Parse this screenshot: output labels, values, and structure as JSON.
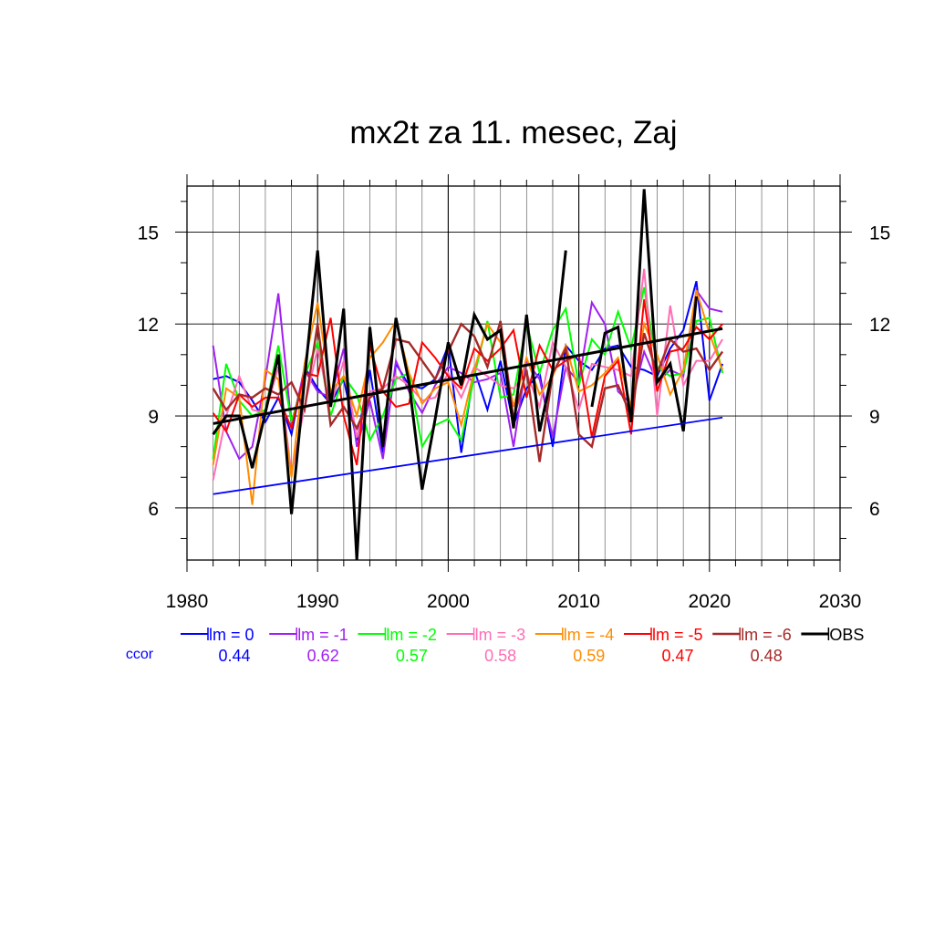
{
  "chart_data": {
    "type": "line",
    "title": "mx2t za 11. mesec, Zaj",
    "xlabel": "",
    "ylabel": "",
    "xlim": [
      1980,
      2030
    ],
    "ylim": [
      4.3,
      16.5
    ],
    "x_ticks": [
      1980,
      1990,
      2000,
      2010,
      2020,
      2030
    ],
    "y_ticks": [
      6,
      9,
      12,
      15
    ],
    "grid": true,
    "legend_position": "bottom",
    "ccor_label": "ccor",
    "ccor_color": "#0000ff",
    "series": [
      {
        "name": "lm = 0",
        "color": "#0000ff",
        "width": 2,
        "ccor": "0.44",
        "x": [
          1982,
          1983,
          1984,
          1985,
          1986,
          1987,
          1988,
          1989,
          1990,
          1991,
          1992,
          1993,
          1994,
          1995,
          1996,
          1997,
          1998,
          1999,
          2000,
          2001,
          2002,
          2003,
          2004,
          2005,
          2006,
          2007,
          2008,
          2009,
          2010,
          2011,
          2012,
          2013,
          2014,
          2015,
          2016,
          2017,
          2018,
          2019,
          2020,
          2021
        ],
        "y": [
          10.2,
          10.3,
          10.1,
          9.5,
          8.8,
          9.6,
          8.4,
          10.6,
          9.9,
          9.4,
          10.2,
          8.2,
          10.5,
          7.8,
          10.7,
          10.0,
          9.9,
          10.2,
          11.3,
          7.8,
          10.5,
          9.2,
          10.8,
          8.7,
          9.9,
          10.4,
          8.0,
          11.3,
          10.8,
          10.5,
          11.2,
          11.3,
          10.6,
          10.5,
          10.3,
          11.2,
          11.8,
          13.4,
          9.5,
          10.7
        ]
      },
      {
        "name": "lm = -1",
        "color": "#a020f0",
        "width": 2,
        "ccor": "0.62",
        "x": [
          1982,
          1983,
          1984,
          1985,
          1986,
          1987,
          1988,
          1989,
          1990,
          1991,
          1992,
          1993,
          1994,
          1995,
          1996,
          1997,
          1998,
          1999,
          2000,
          2001,
          2002,
          2003,
          2004,
          2005,
          2006,
          2007,
          2008,
          2009,
          2010,
          2011,
          2012,
          2013,
          2014,
          2015,
          2016,
          2017,
          2018,
          2019,
          2020,
          2021
        ],
        "y": [
          11.3,
          8.5,
          7.6,
          8.0,
          10.2,
          13.0,
          8.7,
          10.5,
          9.8,
          9.6,
          11.2,
          8.0,
          9.5,
          7.6,
          10.8,
          9.8,
          9.1,
          10.0,
          10.6,
          10.4,
          10.1,
          10.2,
          10.4,
          8.0,
          10.8,
          10.2,
          8.3,
          10.6,
          10.1,
          12.7,
          12.0,
          9.8,
          9.4,
          11.1,
          10.1,
          10.5,
          10.3,
          13.1,
          12.5,
          12.4
        ]
      },
      {
        "name": "lm = -2",
        "color": "#00ff00",
        "width": 2,
        "ccor": "0.57",
        "x": [
          1982,
          1983,
          1984,
          1985,
          1986,
          1987,
          1988,
          1989,
          1990,
          1991,
          1992,
          1993,
          1994,
          1995,
          1996,
          1997,
          1998,
          1999,
          2000,
          2001,
          2002,
          2003,
          2004,
          2005,
          2006,
          2007,
          2008,
          2009,
          2010,
          2011,
          2012,
          2013,
          2014,
          2015,
          2016,
          2017,
          2018,
          2019,
          2020,
          2021
        ],
        "y": [
          7.6,
          10.7,
          9.5,
          9.0,
          9.2,
          11.3,
          8.8,
          10.3,
          11.4,
          9.0,
          10.3,
          9.7,
          8.2,
          9.0,
          10.2,
          10.4,
          8.0,
          8.7,
          8.9,
          8.2,
          10.3,
          12.1,
          9.6,
          9.7,
          12.0,
          10.4,
          11.8,
          12.5,
          10.0,
          11.5,
          11.0,
          12.4,
          11.2,
          13.2,
          10.6,
          10.3,
          10.4,
          12.1,
          12.2,
          10.4
        ]
      },
      {
        "name": "lm = -3",
        "color": "#ff6eb4",
        "width": 2,
        "ccor": "0.58",
        "x": [
          1982,
          1983,
          1984,
          1985,
          1986,
          1987,
          1988,
          1989,
          1990,
          1991,
          1992,
          1993,
          1994,
          1995,
          1996,
          1997,
          1998,
          1999,
          2000,
          2001,
          2002,
          2003,
          2004,
          2005,
          2006,
          2007,
          2008,
          2009,
          2010,
          2011,
          2012,
          2013,
          2014,
          2015,
          2016,
          2017,
          2018,
          2019,
          2020,
          2021
        ],
        "y": [
          6.9,
          9.0,
          10.3,
          9.2,
          9.1,
          10.6,
          7.1,
          9.3,
          11.2,
          9.3,
          10.8,
          8.3,
          9.8,
          9.9,
          10.3,
          10.0,
          9.5,
          9.6,
          10.4,
          9.6,
          10.6,
          10.3,
          10.0,
          9.9,
          10.4,
          9.3,
          11.4,
          10.6,
          9.2,
          10.7,
          10.6,
          10.5,
          10.3,
          13.8,
          9.0,
          12.6,
          10.0,
          10.8,
          10.8,
          11.5
        ]
      },
      {
        "name": "lm = -4",
        "color": "#ff8c00",
        "width": 2,
        "ccor": "0.59",
        "x": [
          1982,
          1983,
          1984,
          1985,
          1986,
          1987,
          1988,
          1989,
          1990,
          1991,
          1992,
          1993,
          1994,
          1995,
          1996,
          1997,
          1998,
          1999,
          2000,
          2001,
          2002,
          2003,
          2004,
          2005,
          2006,
          2007,
          2008,
          2009,
          2010,
          2011,
          2012,
          2013,
          2014,
          2015,
          2016,
          2017,
          2018,
          2019,
          2020,
          2021
        ],
        "y": [
          7.4,
          9.9,
          9.6,
          6.1,
          10.5,
          10.2,
          7.0,
          10.7,
          12.7,
          9.8,
          10.3,
          9.0,
          10.9,
          11.4,
          12.1,
          10.4,
          9.4,
          9.9,
          10.1,
          8.7,
          10.5,
          12.0,
          11.4,
          9.3,
          10.9,
          9.7,
          10.3,
          11.3,
          9.8,
          10.0,
          10.4,
          10.9,
          9.3,
          12.0,
          11.0,
          9.7,
          10.5,
          13.1,
          11.7,
          10.5
        ]
      },
      {
        "name": "lm = -5",
        "color": "#ff0000",
        "width": 2,
        "ccor": "0.47",
        "x": [
          1982,
          1983,
          1984,
          1985,
          1986,
          1987,
          1988,
          1989,
          1990,
          1991,
          1992,
          1993,
          1994,
          1995,
          1996,
          1997,
          1998,
          1999,
          2000,
          2001,
          2002,
          2003,
          2004,
          2005,
          2006,
          2007,
          2008,
          2009,
          2010,
          2011,
          2012,
          2013,
          2014,
          2015,
          2016,
          2017,
          2018,
          2019,
          2020,
          2021
        ],
        "y": [
          9.1,
          8.5,
          9.7,
          9.3,
          9.6,
          9.6,
          8.6,
          10.4,
          10.3,
          12.2,
          9.0,
          7.4,
          11.3,
          9.8,
          9.3,
          9.4,
          11.4,
          10.9,
          10.3,
          9.9,
          11.2,
          10.8,
          11.2,
          11.8,
          9.6,
          11.3,
          10.5,
          10.8,
          11.0,
          8.3,
          10.3,
          10.8,
          8.4,
          12.8,
          9.8,
          11.1,
          11.2,
          11.9,
          11.5,
          12.0
        ]
      },
      {
        "name": "lm = -6",
        "color": "#a52a2a",
        "width": 2.4,
        "ccor": "0.48",
        "x": [
          1982,
          1983,
          1984,
          1985,
          1986,
          1987,
          1988,
          1989,
          1990,
          1991,
          1992,
          1993,
          1994,
          1995,
          1996,
          1997,
          1998,
          1999,
          2000,
          2001,
          2002,
          2003,
          2004,
          2005,
          2006,
          2007,
          2008,
          2009,
          2010,
          2011,
          2012,
          2013,
          2014,
          2015,
          2016,
          2017,
          2018,
          2019,
          2020,
          2021
        ],
        "y": [
          9.9,
          9.2,
          9.7,
          9.6,
          9.9,
          9.7,
          10.1,
          9.2,
          12.0,
          8.7,
          9.3,
          8.6,
          9.6,
          9.9,
          11.5,
          11.4,
          10.8,
          10.2,
          11.1,
          12.0,
          11.6,
          10.6,
          12.1,
          8.9,
          10.5,
          7.5,
          10.4,
          11.2,
          8.4,
          8.0,
          9.9,
          10.0,
          9.0,
          11.7,
          10.4,
          11.5,
          11.1,
          11.2,
          10.5,
          11.1
        ]
      },
      {
        "name": "OBS",
        "color": "#000000",
        "width": 3,
        "ccor": "",
        "x": [
          1982,
          1983,
          1984,
          1985,
          1986,
          1987,
          1988,
          1989,
          1990,
          1991,
          1992,
          1993,
          1994,
          1995,
          1996,
          1997,
          1998,
          1999,
          2000,
          2001,
          2002,
          2003,
          2004,
          2005,
          2006,
          2007,
          2008,
          2009,
          null,
          2011,
          2012,
          2013,
          2014,
          2015,
          2016,
          2017,
          2018,
          2019
        ],
        "y": [
          8.4,
          9.0,
          9.0,
          7.3,
          9.1,
          11.0,
          5.8,
          10.2,
          14.4,
          9.3,
          12.5,
          4.3,
          11.9,
          8.0,
          12.2,
          10.1,
          6.6,
          8.9,
          11.4,
          10.0,
          12.3,
          11.5,
          11.8,
          8.6,
          12.3,
          8.5,
          10.5,
          14.4,
          null,
          9.3,
          11.7,
          11.9,
          8.8,
          16.4,
          10.1,
          10.7,
          8.5,
          12.9
        ]
      }
    ],
    "trend_lines": [
      {
        "color": "#0000ff",
        "width": 1.8,
        "x": [
          1982,
          2021
        ],
        "y": [
          6.45,
          8.95
        ]
      },
      {
        "color": "#000000",
        "width": 3,
        "x": [
          1982,
          2021
        ],
        "y": [
          8.75,
          11.85
        ]
      }
    ]
  }
}
